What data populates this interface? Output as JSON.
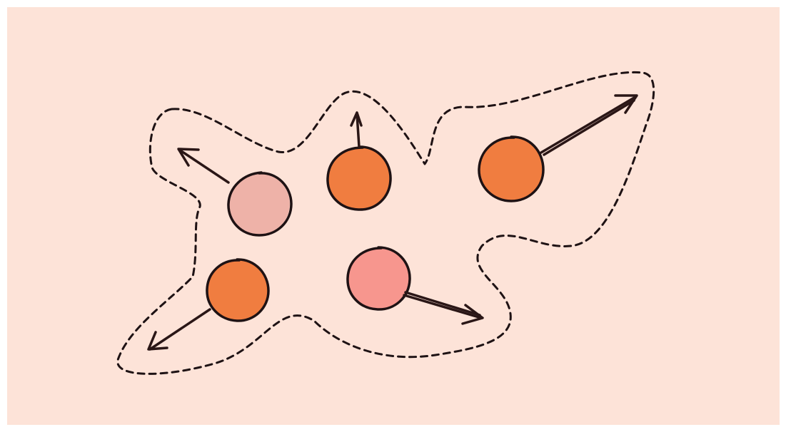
{
  "diagram": {
    "kind": "particles-escaping-dashed-region",
    "colors": {
      "background": "#fde3d8",
      "outline": "#1e1214",
      "arrow": "#2a1616"
    },
    "particles": [
      {
        "id": "particle-1",
        "fill": "#eeb2a8",
        "arrow_direction": "up-left"
      },
      {
        "id": "particle-2",
        "fill": "#f07d40",
        "arrow_direction": "up"
      },
      {
        "id": "particle-3",
        "fill": "#f07d40",
        "arrow_direction": "up-right"
      },
      {
        "id": "particle-4",
        "fill": "#f07d40",
        "arrow_direction": "down-left"
      },
      {
        "id": "particle-5",
        "fill": "#f7968e",
        "arrow_direction": "down-right"
      }
    ]
  }
}
